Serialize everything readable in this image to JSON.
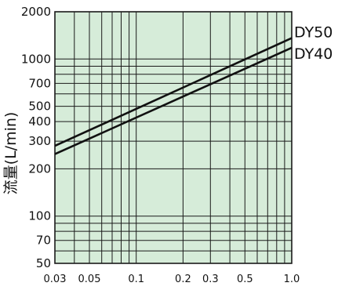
{
  "colors": {
    "plot_background": "#d6ecd9",
    "grid": "#1a1a1a",
    "line": "#111111"
  },
  "chart_data": {
    "type": "line",
    "x_scale": "log",
    "y_scale": "log",
    "xlim": [
      0.03,
      1.0
    ],
    "ylim": [
      50,
      2000
    ],
    "x_ticks": [
      {
        "value": 0.03,
        "label": "0.03"
      },
      {
        "value": 0.05,
        "label": "0.05"
      },
      {
        "value": 0.1,
        "label": "0.1"
      },
      {
        "value": 0.2,
        "label": "0.2"
      },
      {
        "value": 0.3,
        "label": "0.3"
      },
      {
        "value": 0.5,
        "label": "0.5"
      },
      {
        "value": 1.0,
        "label": "1.0"
      }
    ],
    "y_ticks": [
      {
        "value": 50,
        "label": "50"
      },
      {
        "value": 70,
        "label": "70"
      },
      {
        "value": 100,
        "label": "100"
      },
      {
        "value": 200,
        "label": "200"
      },
      {
        "value": 300,
        "label": "300"
      },
      {
        "value": 400,
        "label": "400"
      },
      {
        "value": 500,
        "label": "500"
      },
      {
        "value": 700,
        "label": "700"
      },
      {
        "value": 1000,
        "label": "1000"
      },
      {
        "value": 2000,
        "label": "2000"
      }
    ],
    "x_grid": [
      0.03,
      0.04,
      0.05,
      0.06,
      0.07,
      0.08,
      0.09,
      0.1,
      0.2,
      0.3,
      0.4,
      0.5,
      0.6,
      0.7,
      0.8,
      0.9,
      1.0
    ],
    "y_grid": [
      50,
      60,
      70,
      80,
      90,
      100,
      200,
      300,
      400,
      500,
      600,
      700,
      800,
      900,
      1000,
      2000
    ],
    "grid": true,
    "ylabel": "流量(L/min)",
    "xlabel": "",
    "series": [
      {
        "name": "DY50",
        "x": [
          0.03,
          1.0
        ],
        "y": [
          280,
          1360
        ]
      },
      {
        "name": "DY40",
        "x": [
          0.03,
          1.0
        ],
        "y": [
          248,
          1180
        ]
      }
    ]
  }
}
